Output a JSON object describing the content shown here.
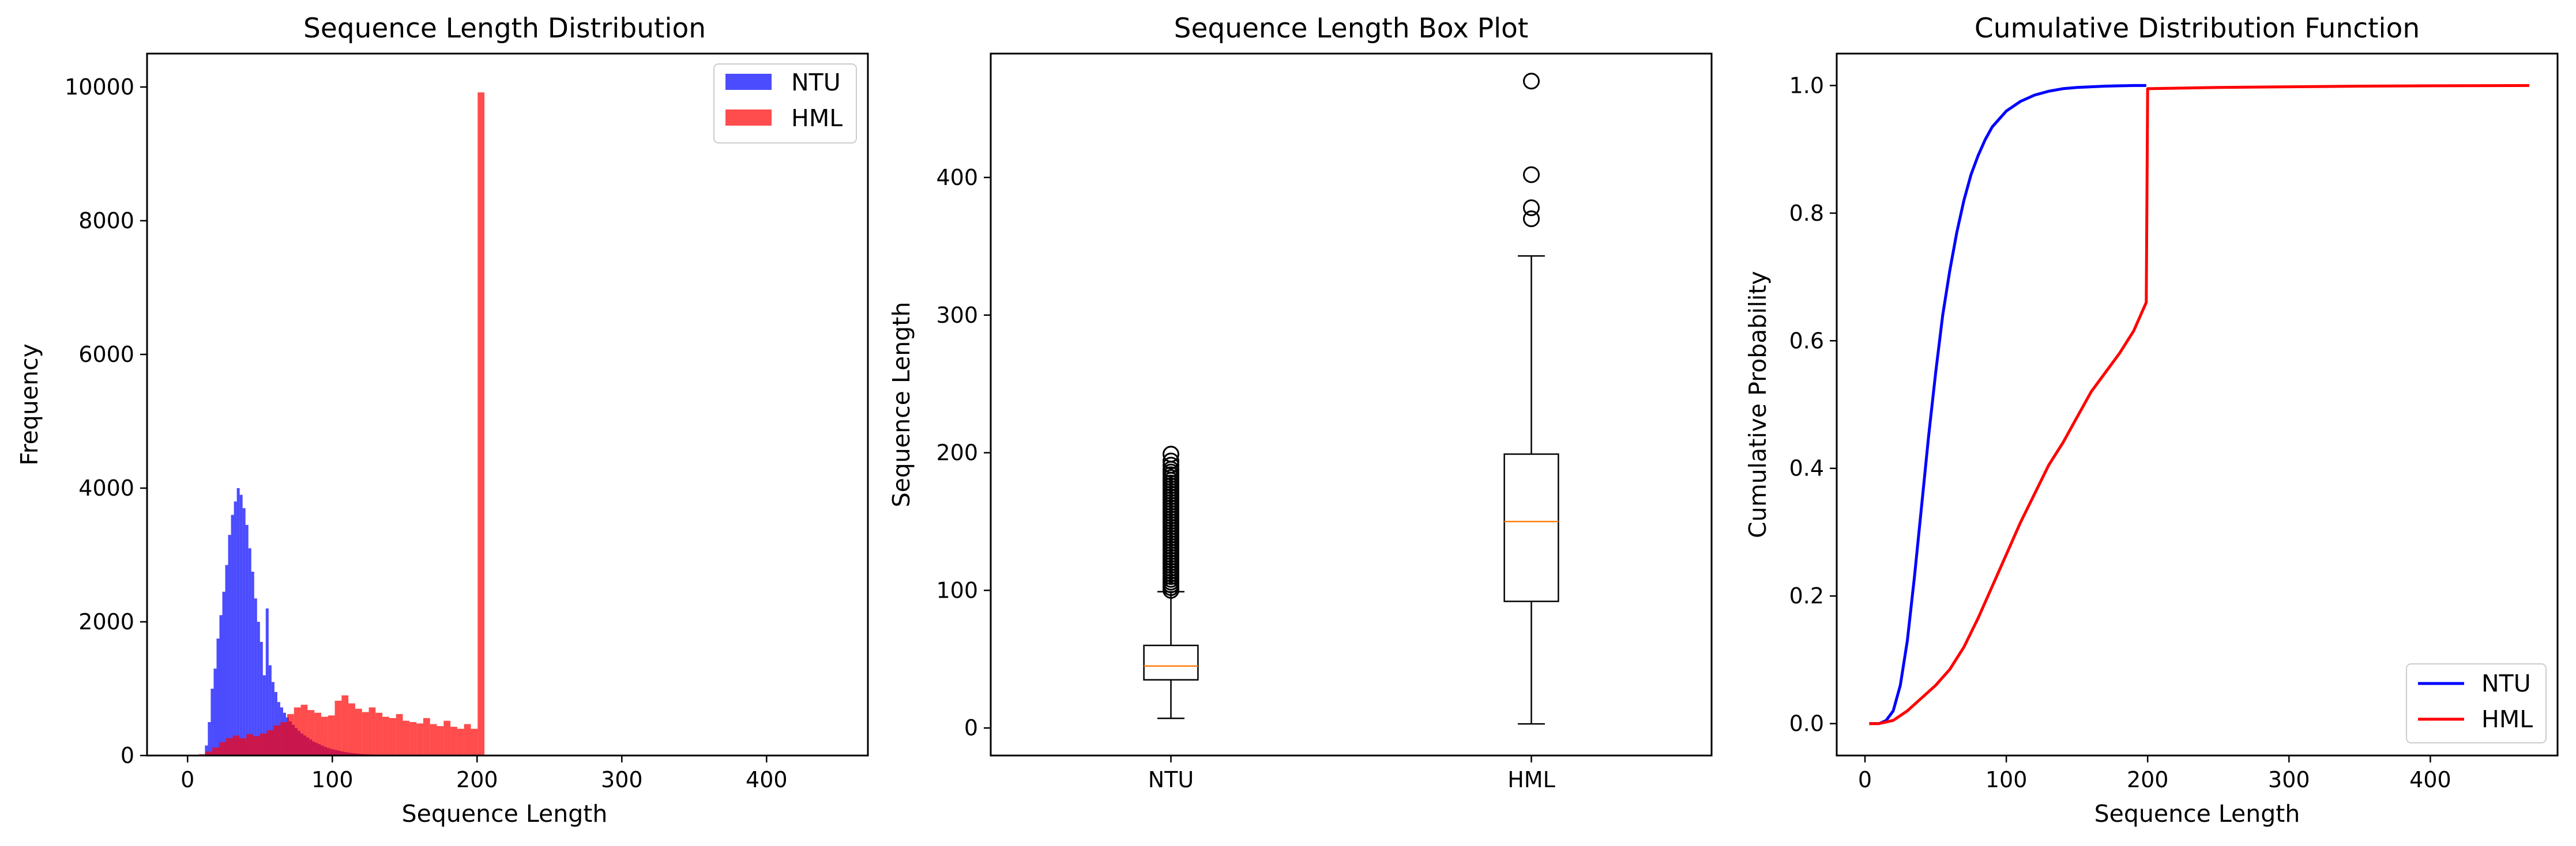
{
  "colors": {
    "ntu": "#0000ff",
    "hml": "#ff0000",
    "median": "#ff7f0e",
    "axis": "#000000"
  },
  "chart_data": [
    {
      "id": "hist",
      "type": "bar",
      "subtype": "histogram",
      "title": "Sequence Length Distribution",
      "xlabel": "Sequence Length",
      "ylabel": "Frequency",
      "xlim": [
        -28,
        470
      ],
      "ylim": [
        0,
        10500
      ],
      "xticks": [
        0,
        100,
        200,
        300,
        400
      ],
      "yticks": [
        0,
        2000,
        4000,
        6000,
        8000,
        10000
      ],
      "legend": {
        "position": "top-right",
        "entries": [
          "NTU",
          "HML"
        ]
      },
      "series": [
        {
          "name": "NTU",
          "color": "#0000ff",
          "alpha": 0.7,
          "bin_width": 2,
          "bin_start": 12,
          "values": [
            150,
            500,
            1000,
            1300,
            1750,
            2100,
            2450,
            2850,
            3300,
            3600,
            3800,
            4000,
            3900,
            3700,
            3450,
            3100,
            2750,
            2350,
            2000,
            1700,
            1200,
            2200,
            1350,
            1100,
            950,
            800,
            720,
            640,
            570,
            510,
            460,
            410,
            370,
            330,
            300,
            270,
            240,
            210,
            190,
            170,
            150,
            130,
            115,
            100,
            90,
            80,
            70,
            60,
            52,
            45,
            40,
            35,
            30,
            26,
            22,
            19,
            16,
            14,
            12,
            10,
            9,
            8,
            7,
            6,
            5,
            5,
            4,
            4,
            3,
            3,
            3,
            2,
            2,
            2,
            2,
            2,
            1,
            1,
            1,
            1,
            1,
            1,
            1,
            1,
            1,
            1,
            1,
            1,
            1
          ]
        },
        {
          "name": "HML",
          "color": "#ff0000",
          "alpha": 0.7,
          "bin_width": 4.7,
          "bin_start": 3,
          "values": [
            10,
            20,
            60,
            120,
            200,
            260,
            300,
            260,
            320,
            290,
            330,
            380,
            450,
            500,
            620,
            720,
            760,
            680,
            640,
            580,
            600,
            820,
            900,
            780,
            700,
            650,
            720,
            640,
            580,
            560,
            620,
            520,
            500,
            480,
            560,
            470,
            440,
            520,
            430,
            400,
            470,
            400,
            9920
          ]
        }
      ]
    },
    {
      "id": "box",
      "type": "box",
      "title": "Sequence Length Box Plot",
      "xlabel": "",
      "ylabel": "Sequence Length",
      "ylim": [
        -20,
        490
      ],
      "yticks": [
        0,
        100,
        200,
        300,
        400
      ],
      "categories": [
        "NTU",
        "HML"
      ],
      "boxes": [
        {
          "name": "NTU",
          "whisker_low": 7,
          "q1": 35,
          "median": 45,
          "q3": 60,
          "whisker_high": 99,
          "outliers": [
            100,
            102,
            104,
            106,
            108,
            110,
            112,
            114,
            116,
            118,
            120,
            122,
            124,
            126,
            128,
            130,
            132,
            134,
            136,
            138,
            140,
            142,
            144,
            146,
            148,
            150,
            152,
            154,
            156,
            158,
            160,
            162,
            164,
            166,
            168,
            170,
            172,
            174,
            176,
            178,
            180,
            182,
            184,
            186,
            188,
            191,
            194,
            199
          ]
        },
        {
          "name": "HML",
          "whisker_low": 3,
          "q1": 92,
          "median": 150,
          "q3": 199,
          "whisker_high": 343,
          "outliers": [
            370,
            378,
            402,
            470
          ]
        }
      ]
    },
    {
      "id": "cdf",
      "type": "line",
      "title": "Cumulative Distribution Function",
      "xlabel": "Sequence Length",
      "ylabel": "Cumulative Probability",
      "xlim": [
        -20,
        490
      ],
      "ylim": [
        -0.05,
        1.05
      ],
      "xticks": [
        0,
        100,
        200,
        300,
        400
      ],
      "yticks": [
        0.0,
        0.2,
        0.4,
        0.6,
        0.8,
        1.0
      ],
      "legend": {
        "position": "bottom-right",
        "entries": [
          "NTU",
          "HML"
        ]
      },
      "series": [
        {
          "name": "NTU",
          "color": "#0000ff",
          "x": [
            3,
            10,
            15,
            20,
            25,
            30,
            35,
            40,
            45,
            50,
            55,
            60,
            65,
            70,
            75,
            80,
            85,
            90,
            100,
            110,
            120,
            130,
            140,
            150,
            160,
            170,
            180,
            190,
            199
          ],
          "y": [
            0.0,
            0.0,
            0.005,
            0.02,
            0.06,
            0.13,
            0.23,
            0.34,
            0.45,
            0.55,
            0.64,
            0.71,
            0.77,
            0.82,
            0.86,
            0.89,
            0.915,
            0.935,
            0.96,
            0.975,
            0.985,
            0.991,
            0.995,
            0.997,
            0.998,
            0.999,
            0.9995,
            1.0,
            1.0
          ]
        },
        {
          "name": "HML",
          "color": "#ff0000",
          "x": [
            3,
            10,
            20,
            30,
            40,
            50,
            60,
            70,
            80,
            90,
            100,
            110,
            120,
            130,
            140,
            150,
            160,
            170,
            180,
            190,
            199,
            200,
            250,
            300,
            350,
            400,
            470
          ],
          "y": [
            0.0,
            0.0,
            0.005,
            0.02,
            0.04,
            0.06,
            0.085,
            0.12,
            0.165,
            0.215,
            0.265,
            0.315,
            0.36,
            0.405,
            0.44,
            0.48,
            0.52,
            0.55,
            0.58,
            0.615,
            0.66,
            0.995,
            0.997,
            0.998,
            0.999,
            0.9995,
            1.0
          ]
        }
      ]
    }
  ]
}
